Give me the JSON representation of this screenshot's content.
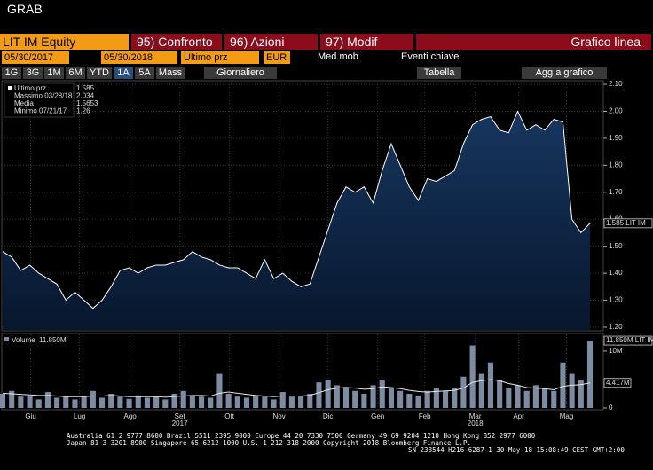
{
  "header": {
    "title": "GRAB"
  },
  "toolbar": {
    "security": "LIT IM Equity",
    "buttons": [
      "95) Confronto",
      "96) Azioni",
      "97) Modif"
    ],
    "mode": "Grafico linea"
  },
  "settings": {
    "start_date": "05/30/2017",
    "end_date": "05/30/2018",
    "field": "Ultimo prz",
    "currency": "EUR",
    "moving": "Med mob",
    "events": "Eventi chiave"
  },
  "periods": {
    "items": [
      "1G",
      "3G",
      "1M",
      "6M",
      "YTD",
      "1A",
      "5A",
      "Mass"
    ],
    "frequency": "Giornaliero",
    "table": "Tabella",
    "add": "Agg a grafico"
  },
  "footer": [
    "Australia 61 2 9777 8600 Brazil 5511 2395 9000 Europe 44 20 7330 7500 Germany 49 69 9204 1210 Hong Kong 852 2977 6000",
    "Japan 81 3 3201 8900         Singapore 65 6212 1000         U.S. 1 212 318 2000           Copyright 2018 Bloomberg Finance L.P.",
    "SN 238544 H216-6287-1 30-May-18 15:08:49 CEST GMT+2:00"
  ],
  "chart_data": [
    {
      "type": "area",
      "color": "#ffffff",
      "legend": [
        {
          "label": "Ultimo prz",
          "value": 1.585
        },
        {
          "label": "Massimo 03/28/18",
          "value": 2.034
        },
        {
          "label": "Media",
          "value": 1.5653
        },
        {
          "label": "Minimo 07/21/17",
          "value": 1.26
        }
      ],
      "last_tag": "1.585 LIT IM",
      "values": [
        1.48,
        1.46,
        1.41,
        1.43,
        1.4,
        1.38,
        1.36,
        1.3,
        1.33,
        1.3,
        1.27,
        1.3,
        1.35,
        1.41,
        1.42,
        1.4,
        1.42,
        1.43,
        1.43,
        1.44,
        1.45,
        1.48,
        1.46,
        1.45,
        1.43,
        1.42,
        1.42,
        1.4,
        1.38,
        1.45,
        1.38,
        1.4,
        1.37,
        1.35,
        1.36,
        1.46,
        1.56,
        1.66,
        1.72,
        1.7,
        1.72,
        1.66,
        1.78,
        1.88,
        1.8,
        1.72,
        1.67,
        1.75,
        1.74,
        1.76,
        1.78,
        1.88,
        1.95,
        1.97,
        1.98,
        1.93,
        1.92,
        2.0,
        1.93,
        1.95,
        1.93,
        1.97,
        1.96,
        1.6,
        1.55,
        1.585
      ],
      "xlim": [
        0,
        65
      ],
      "xticks": [
        {
          "value": 3.1,
          "label": "Giu"
        },
        {
          "value": 8.5,
          "label": "Lug"
        },
        {
          "value": 14.1,
          "label": "Ago"
        },
        {
          "value": 19.6,
          "label": "Set"
        },
        {
          "value": 25.1,
          "label": "Ott"
        },
        {
          "value": 30.6,
          "label": "Nov"
        },
        {
          "value": 36.0,
          "label": "Dic"
        },
        {
          "value": 41.5,
          "label": "Gen"
        },
        {
          "value": 46.7,
          "label": "Feb"
        },
        {
          "value": 52.3,
          "label": "Mar"
        },
        {
          "value": 57.1,
          "label": "Apr"
        },
        {
          "value": 62.4,
          "label": "Mag"
        }
      ],
      "year_ticks": [
        {
          "value": 19.6,
          "label": "2017"
        },
        {
          "value": 52.3,
          "label": "2018"
        }
      ],
      "ylim": [
        1.19,
        2.11
      ],
      "yticks": [
        {
          "value": 1.2,
          "label": "1.20"
        },
        {
          "value": 1.3,
          "label": "1.30"
        },
        {
          "value": 1.4,
          "label": "1.40"
        },
        {
          "value": 1.5,
          "label": "1.50"
        },
        {
          "value": 1.6,
          "label": "1.60"
        },
        {
          "value": 1.7,
          "label": "1.70"
        },
        {
          "value": 1.8,
          "label": "1.80"
        },
        {
          "value": 1.9,
          "label": "1.90"
        },
        {
          "value": 2.0,
          "label": "2.00"
        },
        {
          "value": 2.1,
          "label": "2.10"
        }
      ],
      "grid": true
    },
    {
      "type": "bar",
      "legend": {
        "name": "Volume",
        "value": 11.85,
        "label": "11.850M"
      },
      "last_tag": "11.850M LIT IM",
      "series": [
        {
          "name": "Volume",
          "color": "#7d8ba3",
          "values": [
            2.5,
            3,
            2,
            2.2,
            1.5,
            2.8,
            1.8,
            2,
            1.5,
            2.2,
            3,
            1.8,
            2.5,
            2,
            1.6,
            2.2,
            1.8,
            2,
            1.5,
            2.5,
            3,
            2.2,
            2,
            1.8,
            6,
            2.5,
            2,
            1.8,
            2.2,
            2,
            1.5,
            2.8,
            2,
            2.2,
            2.5,
            4.5,
            5,
            4,
            3.5,
            3,
            2.5,
            4,
            5,
            3.5,
            3,
            2.5,
            2.2,
            3,
            3.5,
            3,
            3.5,
            5.5,
            11,
            6,
            8,
            5,
            3.5,
            4,
            3,
            4,
            3.5,
            3,
            8,
            6,
            5,
            11.85
          ]
        },
        {
          "color": "#e6e6e6",
          "values": [
            2.6,
            2.5,
            2.4,
            2.3,
            2.2,
            2.2,
            2.1,
            2.0,
            2.0,
            2.0,
            2.1,
            2.1,
            2.2,
            2.1,
            2.0,
            2.0,
            2.0,
            2.0,
            1.9,
            2.0,
            2.1,
            2.2,
            2.2,
            2.1,
            2.6,
            2.8,
            2.6,
            2.4,
            2.2,
            2.1,
            2.0,
            2.1,
            2.1,
            2.1,
            2.2,
            2.7,
            3.2,
            3.5,
            3.6,
            3.5,
            3.3,
            3.4,
            3.7,
            3.6,
            3.4,
            3.1,
            2.9,
            2.8,
            2.9,
            3.0,
            3.1,
            3.5,
            4.5,
            4.8,
            5.0,
            4.8,
            4.3,
            4.0,
            3.6,
            3.5,
            3.4,
            3.2,
            3.8,
            4.0,
            4.1,
            4.417
          ],
          "value_labels": {
            "65": "4.417M"
          }
        }
      ],
      "xlim": [
        0,
        65
      ],
      "ylim": [
        0,
        12.8
      ],
      "yticks": [
        0,
        {
          "value": 10,
          "label": "10M"
        }
      ]
    }
  ]
}
